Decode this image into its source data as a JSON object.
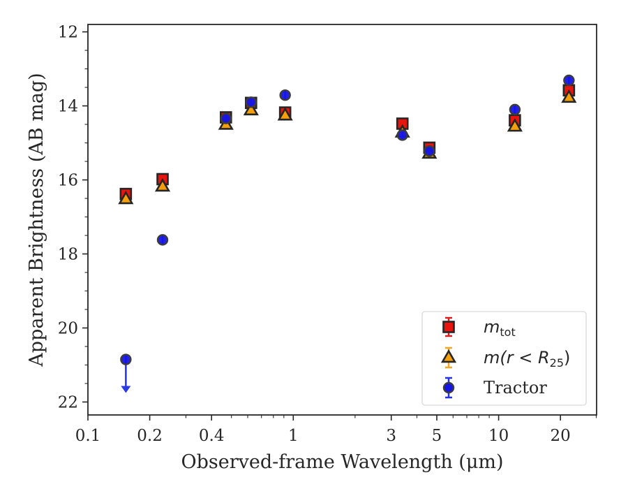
{
  "chart_data": {
    "type": "scatter",
    "xlabel": "Observed-frame Wavelength (μm)",
    "ylabel": "Apparent Brightness (AB mag)",
    "xscale": "log",
    "xlim": [
      0.1,
      30
    ],
    "ylim": [
      22.35,
      11.8
    ],
    "y_inverted": true,
    "xticks": [
      0.1,
      0.2,
      0.4,
      1,
      3,
      5,
      10,
      20
    ],
    "xtick_labels": [
      "0.1",
      "0.2",
      "0.4",
      "1",
      "3",
      "5",
      "10",
      "20"
    ],
    "yticks": [
      12,
      14,
      16,
      18,
      20,
      22
    ],
    "ytick_labels": [
      "12",
      "14",
      "16",
      "18",
      "20",
      "22"
    ],
    "grid": false,
    "legend_position": "lower-right",
    "series": [
      {
        "name": "m_tot",
        "legend_label": {
          "main": "m",
          "sub": "tot"
        },
        "marker": "square",
        "color": "#e8140e",
        "edge_color": "#262626",
        "errorbar_color": "#d61f1f",
        "points": [
          {
            "x": 0.153,
            "y": 16.38
          },
          {
            "x": 0.231,
            "y": 15.98
          },
          {
            "x": 0.47,
            "y": 14.31
          },
          {
            "x": 0.623,
            "y": 13.92
          },
          {
            "x": 0.913,
            "y": 14.18
          },
          {
            "x": 3.4,
            "y": 14.48
          },
          {
            "x": 4.6,
            "y": 15.13
          },
          {
            "x": 12.0,
            "y": 14.39
          },
          {
            "x": 22.0,
            "y": 13.58
          }
        ]
      },
      {
        "name": "m(r < R25)",
        "legend_label": {
          "main": "m(r < R",
          "sub": "25",
          "tail": ")"
        },
        "marker": "triangle",
        "color": "#f5a00a",
        "edge_color": "#262626",
        "errorbar_color": "#f5a623",
        "points": [
          {
            "x": 0.153,
            "y": 16.52
          },
          {
            "x": 0.231,
            "y": 16.18
          },
          {
            "x": 0.47,
            "y": 14.51
          },
          {
            "x": 0.623,
            "y": 14.12
          },
          {
            "x": 0.913,
            "y": 14.26
          },
          {
            "x": 3.4,
            "y": 14.72
          },
          {
            "x": 4.6,
            "y": 15.29
          },
          {
            "x": 12.0,
            "y": 14.56
          },
          {
            "x": 22.0,
            "y": 13.78
          }
        ]
      },
      {
        "name": "Tractor",
        "legend_label": {
          "main": "Tractor"
        },
        "marker": "circle",
        "color": "#1515e6",
        "edge_color": "#3c3c3c",
        "errorbar_color": "#2233dd",
        "points": [
          {
            "x": 0.153,
            "y": 20.85,
            "upper_limit": true
          },
          {
            "x": 0.231,
            "y": 17.62
          },
          {
            "x": 0.47,
            "y": 14.34
          },
          {
            "x": 0.623,
            "y": 13.9
          },
          {
            "x": 0.913,
            "y": 13.71
          },
          {
            "x": 3.4,
            "y": 14.79
          },
          {
            "x": 4.6,
            "y": 15.22
          },
          {
            "x": 12.0,
            "y": 14.1
          },
          {
            "x": 22.0,
            "y": 13.31
          }
        ]
      }
    ]
  }
}
